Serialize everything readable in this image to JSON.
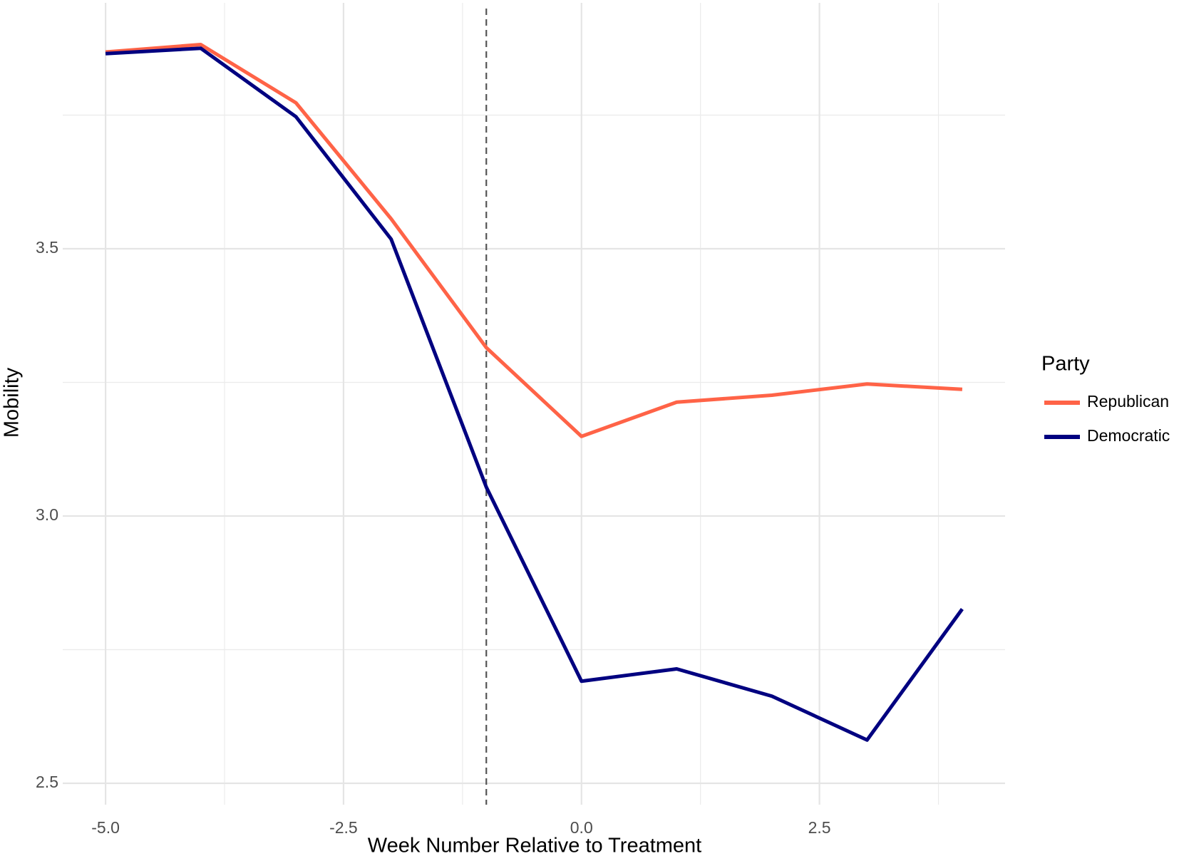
{
  "chart_data": {
    "type": "line",
    "x_label": "Week Number Relative to Treatment",
    "y_label": "Mobility",
    "x": [
      -5,
      -4,
      -3,
      -2,
      -1,
      0,
      1,
      2,
      3,
      4
    ],
    "series": [
      {
        "name": "Republican",
        "color": "#ff6347",
        "values": [
          3.868,
          3.882,
          3.773,
          3.556,
          3.315,
          3.149,
          3.213,
          3.226,
          3.247,
          3.237
        ]
      },
      {
        "name": "Democratic",
        "color": "#000080",
        "values": [
          3.865,
          3.875,
          3.747,
          3.518,
          3.054,
          2.691,
          2.714,
          2.663,
          2.581,
          2.826
        ]
      }
    ],
    "legend_title": "Party",
    "legend_position": "right",
    "vline": -1,
    "xlim": [
      -5.45,
      4.45
    ],
    "ylim": [
      2.46,
      3.96
    ],
    "xticks": [
      {
        "value": -5,
        "label": "-5.0"
      },
      -2.5,
      {
        "value": 0,
        "label": "0.0"
      },
      2.5
    ],
    "yticks": [
      2.5,
      {
        "value": 3,
        "label": "3.0"
      },
      3.5
    ],
    "xminorticks": [
      -3.75,
      -1.25,
      1.25,
      3.75
    ],
    "yminorticks": [
      2.75,
      3.25,
      3.75
    ],
    "grid": true
  }
}
